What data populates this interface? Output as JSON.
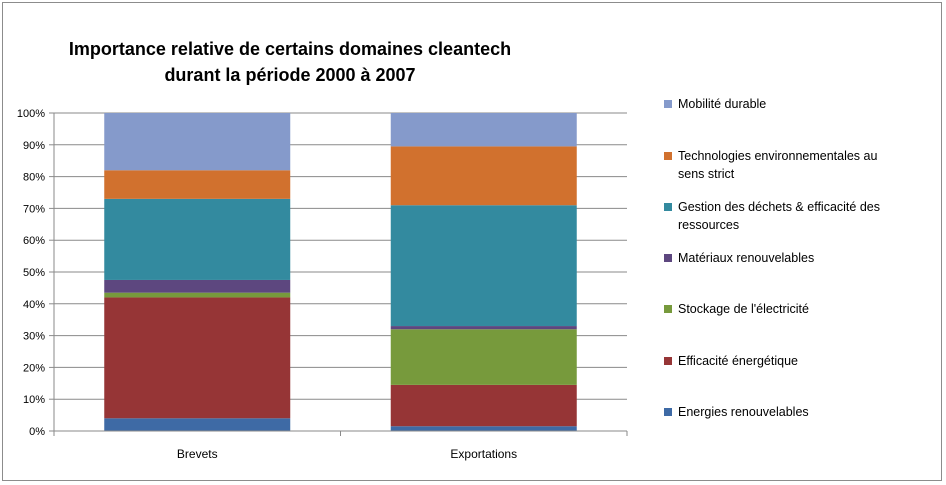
{
  "chart_data": {
    "type": "bar",
    "stacked": true,
    "title_lines": [
      "Importance relative de certains domaines cleantech",
      "durant la période 2000 à 2007"
    ],
    "xlabel": "",
    "ylabel": "",
    "ylim": [
      0,
      100
    ],
    "y_ticks": [
      "0%",
      "10%",
      "20%",
      "30%",
      "40%",
      "50%",
      "60%",
      "70%",
      "80%",
      "90%",
      "100%"
    ],
    "categories": [
      "Brevets",
      "Exportations"
    ],
    "grid": true,
    "legend_position": "right",
    "series": [
      {
        "name": "Energies renouvelables",
        "color": "#3e6aa5",
        "values": [
          4,
          1.5
        ]
      },
      {
        "name": "Efficacité énergétique",
        "color": "#963536",
        "values": [
          38,
          13
        ]
      },
      {
        "name": "Stockage de l'électricité",
        "color": "#779a3c",
        "values": [
          1.5,
          17.5
        ]
      },
      {
        "name": "Matériaux renouvelables",
        "color": "#5d477f",
        "values": [
          4,
          1
        ]
      },
      {
        "name": "Gestion des déchets & efficacité des ressources",
        "color": "#338a9f",
        "values": [
          25.5,
          38
        ]
      },
      {
        "name": "Technologies environnementales au sens strict",
        "color": "#d1712e",
        "values": [
          9,
          18.5
        ]
      },
      {
        "name": "Mobilité durable",
        "color": "#859acb",
        "values": [
          18,
          10.5
        ]
      }
    ],
    "legend_order": [
      6,
      5,
      4,
      3,
      2,
      1,
      0
    ],
    "legend_lines": [
      [
        "Mobilité durable"
      ],
      [
        "Technologies environnementales au",
        "sens strict"
      ],
      [
        "Gestion des déchets & efficacité des",
        "ressources"
      ],
      [
        "Matériaux renouvelables"
      ],
      [
        "Stockage de l'électricité"
      ],
      [
        "Efficacité énergétique"
      ],
      [
        "Energies renouvelables"
      ]
    ]
  }
}
